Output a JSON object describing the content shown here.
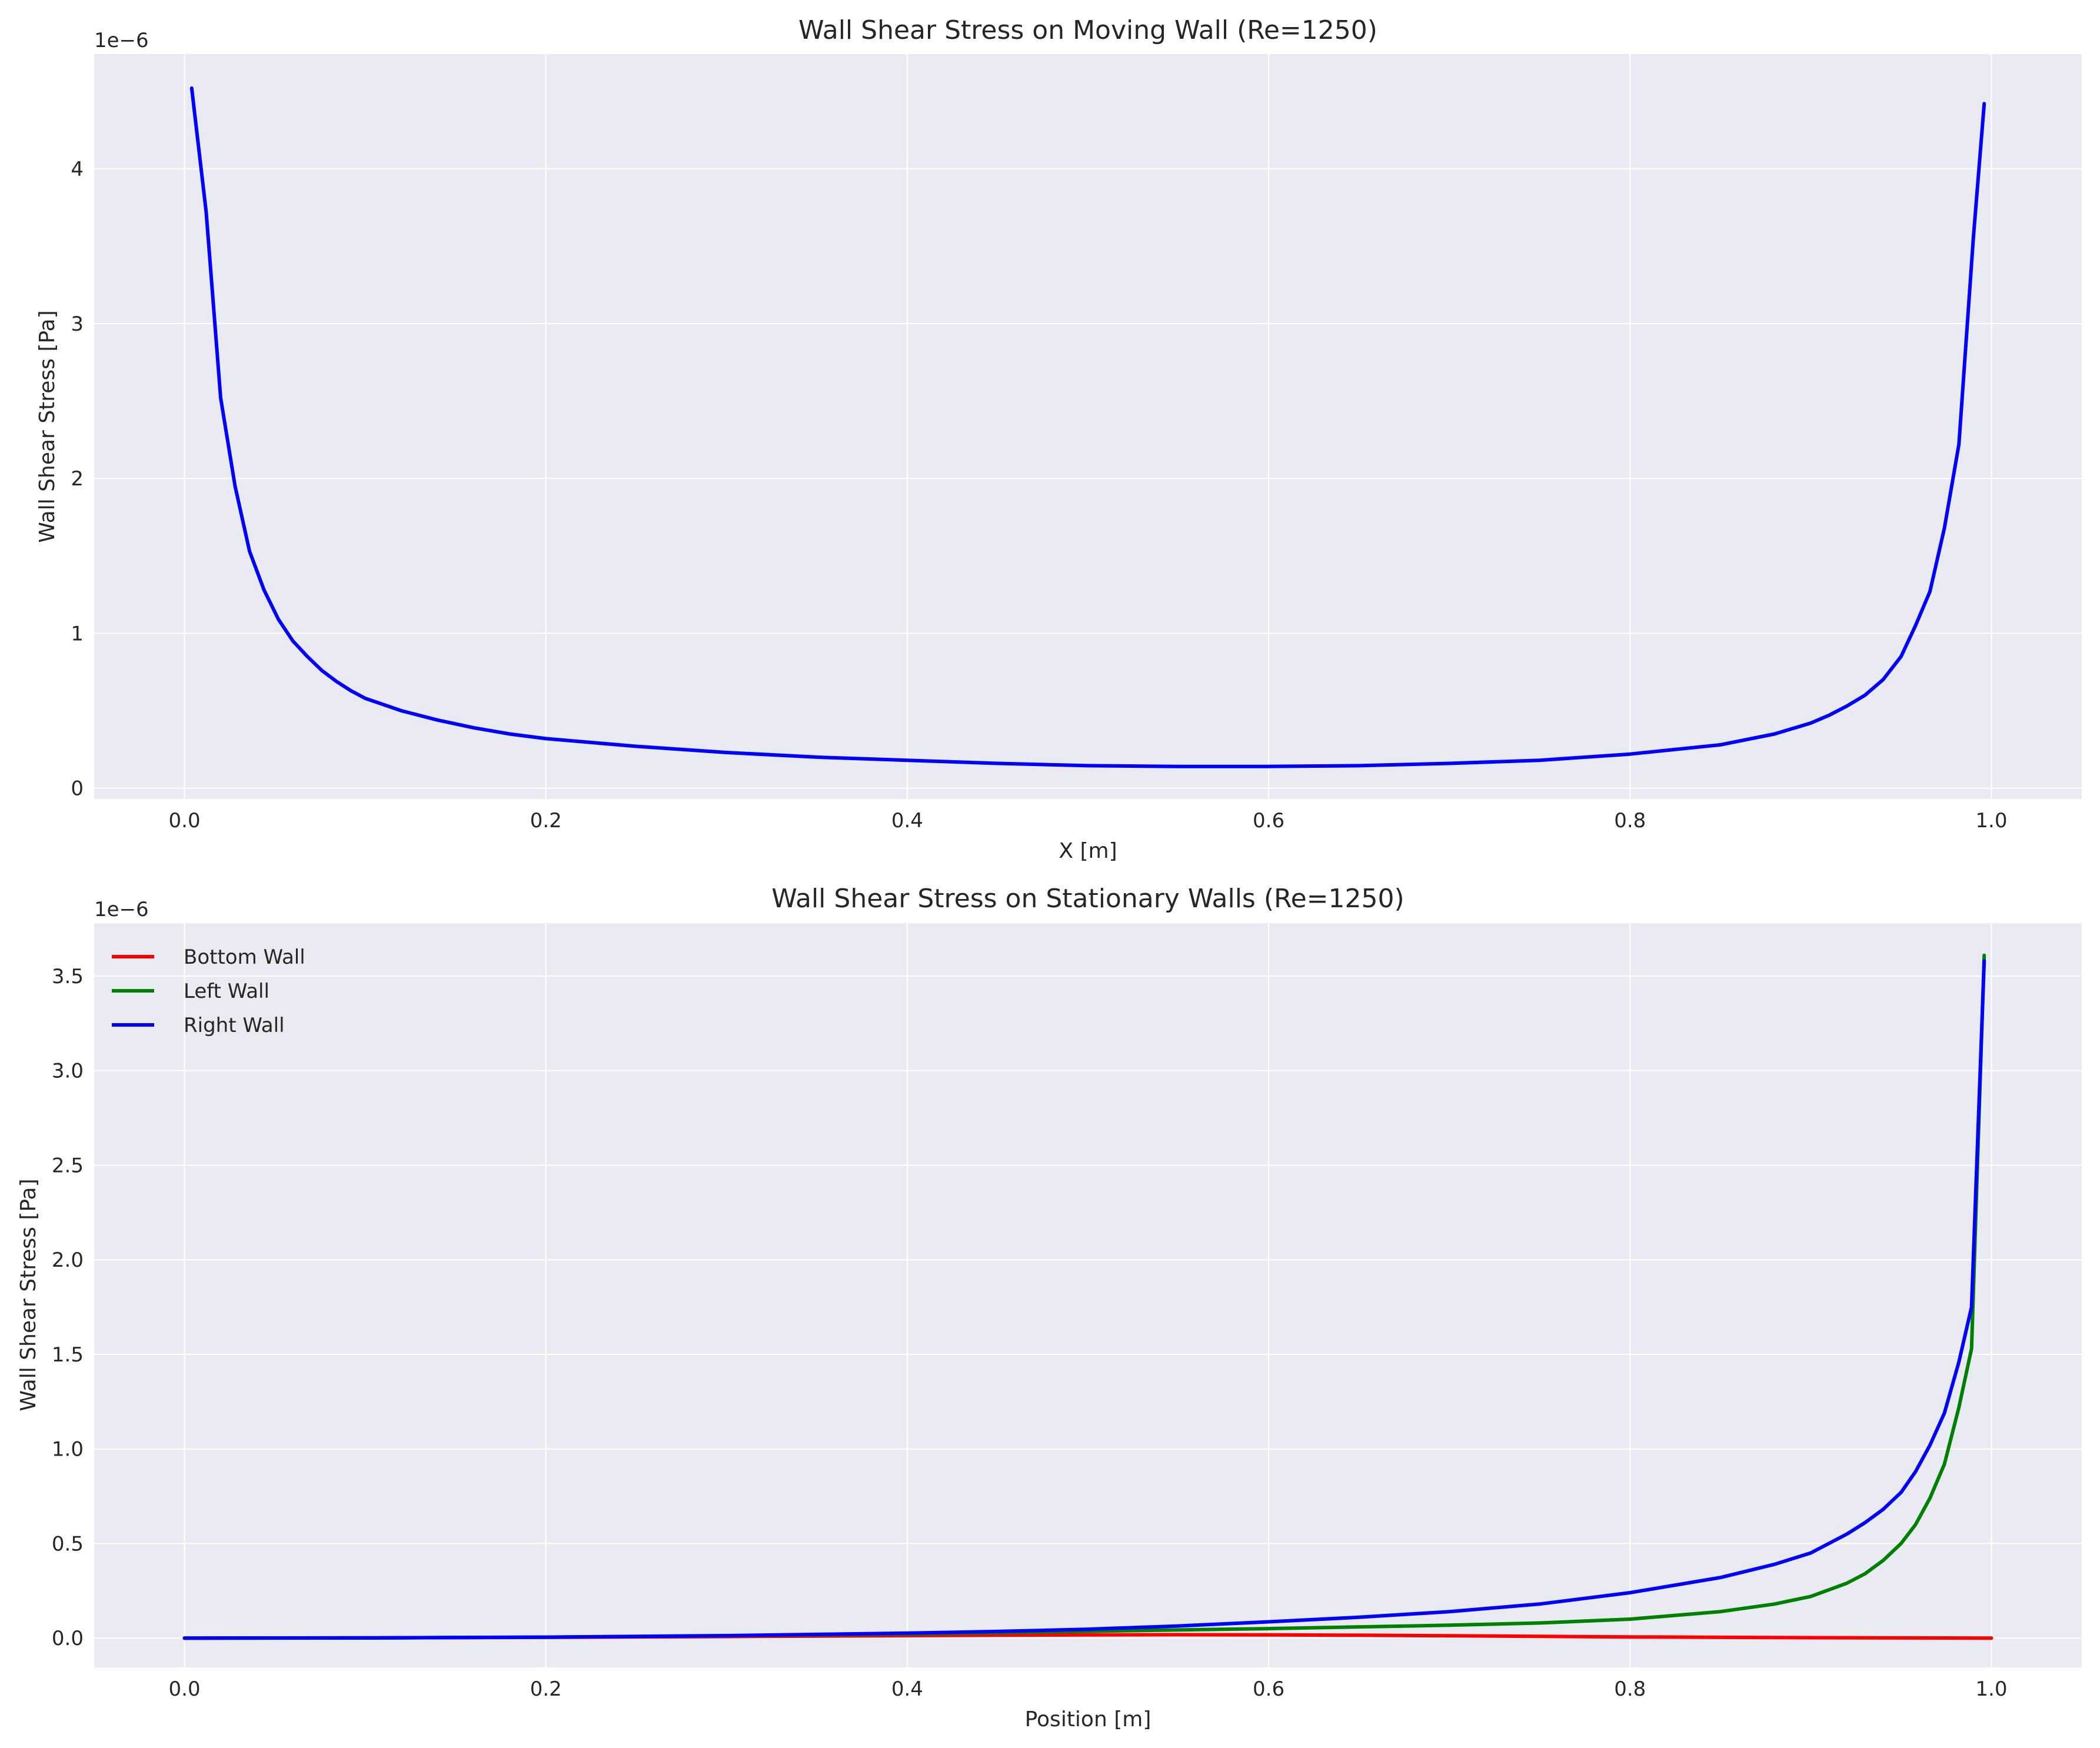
{
  "chart_data": [
    {
      "type": "line",
      "title": "Wall Shear Stress on Moving Wall (Re=1250)",
      "xlabel": "X [m]",
      "ylabel": "Wall Shear Stress [Pa]",
      "y_offset_label": "1e−6",
      "xlim": [
        -0.05,
        1.05
      ],
      "ylim": [
        -0.07,
        4.74
      ],
      "xticks": [
        0.0,
        0.2,
        0.4,
        0.6,
        0.8,
        1.0
      ],
      "xtick_labels": [
        "0.0",
        "0.2",
        "0.4",
        "0.6",
        "0.8",
        "1.0"
      ],
      "yticks": [
        0,
        1,
        2,
        3,
        4
      ],
      "ytick_labels": [
        "0",
        "1",
        "2",
        "3",
        "4"
      ],
      "grid": true,
      "legend": null,
      "series": [
        {
          "color": "#0000ff",
          "x": [
            0.004,
            0.012,
            0.02,
            0.028,
            0.036,
            0.044,
            0.052,
            0.06,
            0.068,
            0.076,
            0.084,
            0.092,
            0.1,
            0.12,
            0.14,
            0.16,
            0.18,
            0.2,
            0.25,
            0.3,
            0.35,
            0.4,
            0.45,
            0.5,
            0.55,
            0.6,
            0.65,
            0.7,
            0.75,
            0.8,
            0.85,
            0.88,
            0.9,
            0.91,
            0.92,
            0.93,
            0.94,
            0.95,
            0.958,
            0.966,
            0.974,
            0.982,
            0.99,
            0.996
          ],
          "y": [
            4.52,
            3.72,
            2.52,
            1.95,
            1.53,
            1.28,
            1.09,
            0.95,
            0.85,
            0.76,
            0.69,
            0.63,
            0.58,
            0.5,
            0.44,
            0.39,
            0.35,
            0.32,
            0.27,
            0.23,
            0.2,
            0.18,
            0.16,
            0.145,
            0.14,
            0.14,
            0.145,
            0.16,
            0.18,
            0.22,
            0.28,
            0.35,
            0.42,
            0.47,
            0.53,
            0.6,
            0.7,
            0.85,
            1.05,
            1.27,
            1.68,
            2.22,
            3.55,
            4.42
          ]
        }
      ]
    },
    {
      "type": "line",
      "title": "Wall Shear Stress on Stationary Walls (Re=1250)",
      "xlabel": "Position [m]",
      "ylabel": "Wall Shear Stress [Pa]",
      "y_offset_label": "1e−6",
      "xlim": [
        -0.05,
        1.05
      ],
      "ylim": [
        -0.155,
        3.78
      ],
      "xticks": [
        0.0,
        0.2,
        0.4,
        0.6,
        0.8,
        1.0
      ],
      "xtick_labels": [
        "0.0",
        "0.2",
        "0.4",
        "0.6",
        "0.8",
        "1.0"
      ],
      "yticks": [
        0.0,
        0.5,
        1.0,
        1.5,
        2.0,
        2.5,
        3.0,
        3.5
      ],
      "ytick_labels": [
        "0.0",
        "0.5",
        "1.0",
        "1.5",
        "2.0",
        "2.5",
        "3.0",
        "3.5"
      ],
      "grid": true,
      "legend": "top-left",
      "series": [
        {
          "name": "Bottom Wall",
          "color": "#ff0000",
          "x": [
            0.0,
            0.1,
            0.2,
            0.3,
            0.4,
            0.45,
            0.5,
            0.55,
            0.6,
            0.65,
            0.7,
            0.75,
            0.8,
            0.85,
            0.9,
            0.95,
            1.0
          ],
          "y": [
            0.0,
            0.001,
            0.004,
            0.008,
            0.013,
            0.015,
            0.017,
            0.018,
            0.017,
            0.015,
            0.012,
            0.009,
            0.006,
            0.004,
            0.002,
            0.001,
            0.0
          ]
        },
        {
          "name": "Left Wall",
          "color": "#008000",
          "x": [
            0.0,
            0.1,
            0.2,
            0.3,
            0.4,
            0.5,
            0.6,
            0.7,
            0.75,
            0.8,
            0.85,
            0.88,
            0.9,
            0.92,
            0.93,
            0.94,
            0.95,
            0.958,
            0.966,
            0.974,
            0.982,
            0.989,
            0.996
          ],
          "y": [
            0.0,
            0.001,
            0.005,
            0.012,
            0.022,
            0.036,
            0.05,
            0.068,
            0.08,
            0.1,
            0.14,
            0.18,
            0.22,
            0.29,
            0.34,
            0.41,
            0.5,
            0.6,
            0.74,
            0.92,
            1.22,
            1.53,
            3.61
          ]
        },
        {
          "name": "Right Wall",
          "color": "#0000ff",
          "x": [
            0.0,
            0.1,
            0.2,
            0.3,
            0.4,
            0.45,
            0.5,
            0.55,
            0.6,
            0.65,
            0.7,
            0.75,
            0.8,
            0.85,
            0.88,
            0.9,
            0.92,
            0.93,
            0.94,
            0.95,
            0.958,
            0.966,
            0.974,
            0.982,
            0.989,
            0.996
          ],
          "y": [
            0.0,
            0.001,
            0.005,
            0.013,
            0.026,
            0.035,
            0.047,
            0.064,
            0.086,
            0.11,
            0.14,
            0.18,
            0.24,
            0.32,
            0.39,
            0.45,
            0.55,
            0.61,
            0.68,
            0.77,
            0.88,
            1.02,
            1.19,
            1.46,
            1.75,
            3.58
          ]
        }
      ]
    }
  ]
}
